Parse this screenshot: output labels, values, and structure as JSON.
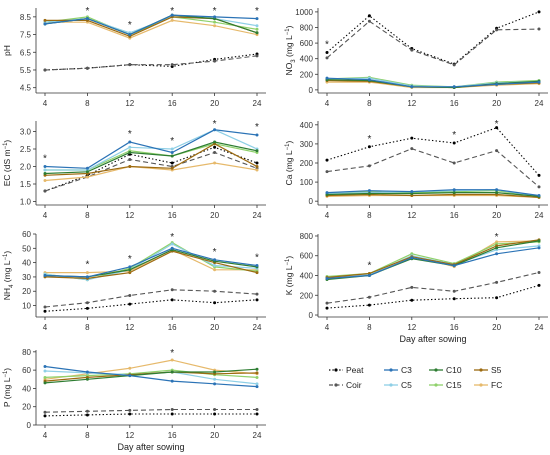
{
  "colors": {
    "Peat": "#000000",
    "Coir": "#555555",
    "C3": "#2b73b6",
    "C5": "#8ecfe6",
    "C10": "#2e7d32",
    "C15": "#8fd16b",
    "S5": "#9c6a10",
    "FC": "#e6b96b"
  },
  "series_order": [
    "Peat",
    "C3",
    "C10",
    "S5",
    "Coir",
    "C5",
    "C15",
    "FC"
  ],
  "legend": {
    "items": [
      {
        "name": "Peat",
        "style": "dotted"
      },
      {
        "name": "C3",
        "style": "solid"
      },
      {
        "name": "C10",
        "style": "solid"
      },
      {
        "name": "S5",
        "style": "solid"
      },
      {
        "name": "Coir",
        "style": "dashed"
      },
      {
        "name": "C5",
        "style": "solid"
      },
      {
        "name": "C15",
        "style": "solid"
      },
      {
        "name": "FC",
        "style": "solid"
      }
    ]
  },
  "chart_data": [
    {
      "id": "pH",
      "type": "line",
      "ylabel": "pH",
      "x": [
        4,
        8,
        12,
        16,
        20,
        24
      ],
      "xlabel": "",
      "ylim": [
        4.2,
        9.0
      ],
      "yticks": [
        4.5,
        5.5,
        6.5,
        7.5,
        8.5
      ],
      "ytick_labels": [
        "4.5",
        "5.5",
        "6.5",
        "7.5",
        "8.5"
      ],
      "xtick_labels": [
        "4",
        "8",
        "12",
        "16",
        "20",
        "24"
      ],
      "asterisks": [
        8,
        12,
        16,
        20,
        24
      ],
      "series": [
        {
          "name": "Peat",
          "values": [
            5.5,
            5.6,
            5.8,
            5.7,
            6.1,
            6.4
          ]
        },
        {
          "name": "Coir",
          "values": [
            5.5,
            5.6,
            5.8,
            5.8,
            6.0,
            6.3
          ]
        },
        {
          "name": "C3",
          "values": [
            8.1,
            8.4,
            7.5,
            8.6,
            8.5,
            8.4
          ]
        },
        {
          "name": "C5",
          "values": [
            8.2,
            8.4,
            7.6,
            8.5,
            8.4,
            8.0
          ]
        },
        {
          "name": "C10",
          "values": [
            8.1,
            8.4,
            7.5,
            8.6,
            8.4,
            7.6
          ]
        },
        {
          "name": "C15",
          "values": [
            8.2,
            8.5,
            7.5,
            8.5,
            8.2,
            7.8
          ]
        },
        {
          "name": "S5",
          "values": [
            8.3,
            8.3,
            7.4,
            8.5,
            8.4,
            7.6
          ]
        },
        {
          "name": "FC",
          "values": [
            8.2,
            8.2,
            7.3,
            8.3,
            8.0,
            7.5
          ]
        }
      ]
    },
    {
      "id": "NO3",
      "type": "line",
      "ylabel": "NO3 (mg L-1)",
      "x": [
        4,
        8,
        12,
        16,
        20,
        24
      ],
      "xlabel": "",
      "ylim": [
        -40,
        1050
      ],
      "yticks": [
        0,
        200,
        400,
        600,
        800,
        1000
      ],
      "ytick_labels": [
        "0",
        "200",
        "400",
        "600",
        "800",
        "1000"
      ],
      "xtick_labels": [
        "4",
        "8",
        "12",
        "16",
        "20",
        "24"
      ],
      "asterisks": [
        4
      ],
      "series": [
        {
          "name": "Peat",
          "values": [
            480,
            950,
            530,
            330,
            790,
            1000
          ]
        },
        {
          "name": "Coir",
          "values": [
            410,
            880,
            510,
            320,
            770,
            780
          ]
        },
        {
          "name": "C3",
          "values": [
            150,
            130,
            40,
            40,
            70,
            100
          ]
        },
        {
          "name": "C5",
          "values": [
            140,
            150,
            50,
            40,
            90,
            110
          ]
        },
        {
          "name": "C10",
          "values": [
            130,
            120,
            40,
            30,
            80,
            110
          ]
        },
        {
          "name": "C15",
          "values": [
            140,
            160,
            60,
            40,
            100,
            120
          ]
        },
        {
          "name": "S5",
          "values": [
            120,
            110,
            40,
            30,
            70,
            90
          ]
        },
        {
          "name": "FC",
          "values": [
            100,
            100,
            30,
            30,
            60,
            80
          ]
        }
      ]
    },
    {
      "id": "EC",
      "type": "line",
      "ylabel": "EC (dS m-1)",
      "x": [
        4,
        8,
        12,
        16,
        20,
        24
      ],
      "xlabel": "",
      "ylim": [
        0.9,
        3.3
      ],
      "yticks": [
        1.0,
        1.5,
        2.0,
        2.5,
        3.0
      ],
      "ytick_labels": [
        "1.0",
        "1.5",
        "2.0",
        "2.5",
        "3.0"
      ],
      "xtick_labels": [
        "4",
        "8",
        "12",
        "16",
        "20",
        "24"
      ],
      "asterisks": [
        4,
        12,
        16,
        20,
        24
      ],
      "series": [
        {
          "name": "Peat",
          "values": [
            1.3,
            1.75,
            2.35,
            2.1,
            2.55,
            2.1
          ]
        },
        {
          "name": "Coir",
          "values": [
            1.3,
            1.7,
            2.2,
            2.0,
            2.4,
            1.95
          ]
        },
        {
          "name": "C3",
          "values": [
            2.0,
            1.95,
            2.7,
            2.4,
            3.05,
            2.9
          ]
        },
        {
          "name": "C5",
          "values": [
            1.9,
            1.9,
            2.55,
            2.5,
            3.05,
            2.5
          ]
        },
        {
          "name": "C10",
          "values": [
            1.8,
            1.85,
            2.4,
            2.3,
            2.7,
            2.45
          ]
        },
        {
          "name": "C15",
          "values": [
            1.9,
            1.9,
            2.45,
            2.3,
            2.65,
            2.4
          ]
        },
        {
          "name": "S5",
          "values": [
            1.75,
            1.8,
            2.0,
            1.95,
            2.65,
            2.0
          ]
        },
        {
          "name": "FC",
          "values": [
            1.6,
            1.7,
            2.0,
            1.9,
            2.1,
            1.9
          ]
        }
      ]
    },
    {
      "id": "Ca",
      "type": "line",
      "ylabel": "Ca (mg L-1)",
      "x": [
        4,
        8,
        12,
        16,
        20,
        24
      ],
      "xlabel": "",
      "ylim": [
        -20,
        420
      ],
      "yticks": [
        0,
        100,
        200,
        300,
        400
      ],
      "ytick_labels": [
        "0",
        "100",
        "200",
        "300",
        "400"
      ],
      "xtick_labels": [
        "4",
        "8",
        "12",
        "16",
        "20",
        "24"
      ],
      "asterisks": [
        8,
        16,
        20
      ],
      "series": [
        {
          "name": "Peat",
          "values": [
            215,
            285,
            330,
            305,
            385,
            135
          ]
        },
        {
          "name": "Coir",
          "values": [
            155,
            185,
            275,
            200,
            265,
            75
          ]
        },
        {
          "name": "C3",
          "values": [
            45,
            55,
            50,
            60,
            60,
            30
          ]
        },
        {
          "name": "C5",
          "values": [
            40,
            45,
            50,
            55,
            60,
            25
          ]
        },
        {
          "name": "C10",
          "values": [
            35,
            40,
            40,
            45,
            45,
            25
          ]
        },
        {
          "name": "C15",
          "values": [
            40,
            50,
            45,
            50,
            55,
            25
          ]
        },
        {
          "name": "S5",
          "values": [
            30,
            35,
            30,
            35,
            35,
            20
          ]
        },
        {
          "name": "FC",
          "values": [
            25,
            30,
            30,
            30,
            30,
            20
          ]
        }
      ]
    },
    {
      "id": "NH4",
      "type": "line",
      "ylabel": "NH4 (mg L-1)",
      "x": [
        4,
        8,
        12,
        16,
        20,
        24
      ],
      "xlabel": "",
      "ylim": [
        2,
        60
      ],
      "yticks": [
        10,
        20,
        30,
        40,
        50,
        60
      ],
      "ytick_labels": [
        "10",
        "20",
        "30",
        "40",
        "50",
        "60"
      ],
      "xtick_labels": [
        "4",
        "8",
        "12",
        "16",
        "20",
        "24"
      ],
      "asterisks": [
        8,
        12,
        16,
        20,
        24
      ],
      "series": [
        {
          "name": "Peat",
          "values": [
            6,
            8,
            11,
            14,
            12,
            14
          ]
        },
        {
          "name": "Coir",
          "values": [
            9,
            12,
            17,
            21,
            20,
            18
          ]
        },
        {
          "name": "C3",
          "values": [
            31,
            30,
            37,
            50,
            42,
            38
          ]
        },
        {
          "name": "C5",
          "values": [
            32,
            28,
            35,
            53,
            38,
            36
          ]
        },
        {
          "name": "C10",
          "values": [
            31,
            30,
            35,
            49,
            41,
            37
          ]
        },
        {
          "name": "C15",
          "values": [
            32,
            28,
            36,
            54,
            37,
            34
          ]
        },
        {
          "name": "S5",
          "values": [
            30,
            29,
            33,
            48,
            40,
            33
          ]
        },
        {
          "name": "FC",
          "values": [
            33,
            33,
            34,
            49,
            35,
            35
          ]
        }
      ]
    },
    {
      "id": "K",
      "type": "line",
      "ylabel": "K (mg L-1)",
      "x": [
        4,
        8,
        12,
        16,
        20,
        24
      ],
      "xlabel": "Day after sowing",
      "ylim": [
        -20,
        820
      ],
      "yticks": [
        0,
        200,
        400,
        600,
        800
      ],
      "ytick_labels": [
        "0",
        "200",
        "400",
        "600",
        "800"
      ],
      "xtick_labels": [
        "4",
        "8",
        "12",
        "16",
        "20",
        "24"
      ],
      "asterisks": [
        8,
        20
      ],
      "series": [
        {
          "name": "Peat",
          "values": [
            70,
            100,
            150,
            165,
            175,
            300
          ]
        },
        {
          "name": "Coir",
          "values": [
            120,
            180,
            280,
            240,
            330,
            430
          ]
        },
        {
          "name": "C3",
          "values": [
            370,
            400,
            580,
            500,
            620,
            680
          ]
        },
        {
          "name": "C5",
          "values": [
            380,
            410,
            600,
            510,
            660,
            700
          ]
        },
        {
          "name": "C10",
          "values": [
            360,
            400,
            570,
            500,
            680,
            750
          ]
        },
        {
          "name": "C15",
          "values": [
            390,
            420,
            620,
            520,
            720,
            740
          ]
        },
        {
          "name": "S5",
          "values": [
            380,
            420,
            590,
            510,
            700,
            760
          ]
        },
        {
          "name": "FC",
          "values": [
            370,
            410,
            600,
            490,
            740,
            750
          ]
        }
      ]
    },
    {
      "id": "P",
      "type": "line",
      "ylabel": "P (mg L-1)",
      "x": [
        4,
        8,
        12,
        16,
        20,
        24
      ],
      "xlabel": "Day after sowing",
      "ylim": [
        0,
        82
      ],
      "yticks": [
        0,
        20,
        40,
        60,
        80
      ],
      "ytick_labels": [
        "0",
        "20",
        "40",
        "60",
        "80"
      ],
      "xtick_labels": [
        "4",
        "8",
        "12",
        "16",
        "20",
        "24"
      ],
      "asterisks": [
        16
      ],
      "series": [
        {
          "name": "Peat",
          "values": [
            10,
            11,
            12,
            12,
            12,
            12
          ]
        },
        {
          "name": "Coir",
          "values": [
            14,
            15,
            16,
            17,
            17,
            17
          ]
        },
        {
          "name": "C3",
          "values": [
            64,
            58,
            54,
            48,
            45,
            42
          ]
        },
        {
          "name": "C5",
          "values": [
            59,
            57,
            55,
            58,
            50,
            45
          ]
        },
        {
          "name": "C10",
          "values": [
            46,
            50,
            54,
            58,
            58,
            61
          ]
        },
        {
          "name": "C15",
          "values": [
            52,
            54,
            56,
            60,
            55,
            52
          ]
        },
        {
          "name": "S5",
          "values": [
            48,
            52,
            55,
            58,
            56,
            57
          ]
        },
        {
          "name": "FC",
          "values": [
            50,
            56,
            62,
            71,
            60,
            56
          ]
        }
      ]
    }
  ]
}
